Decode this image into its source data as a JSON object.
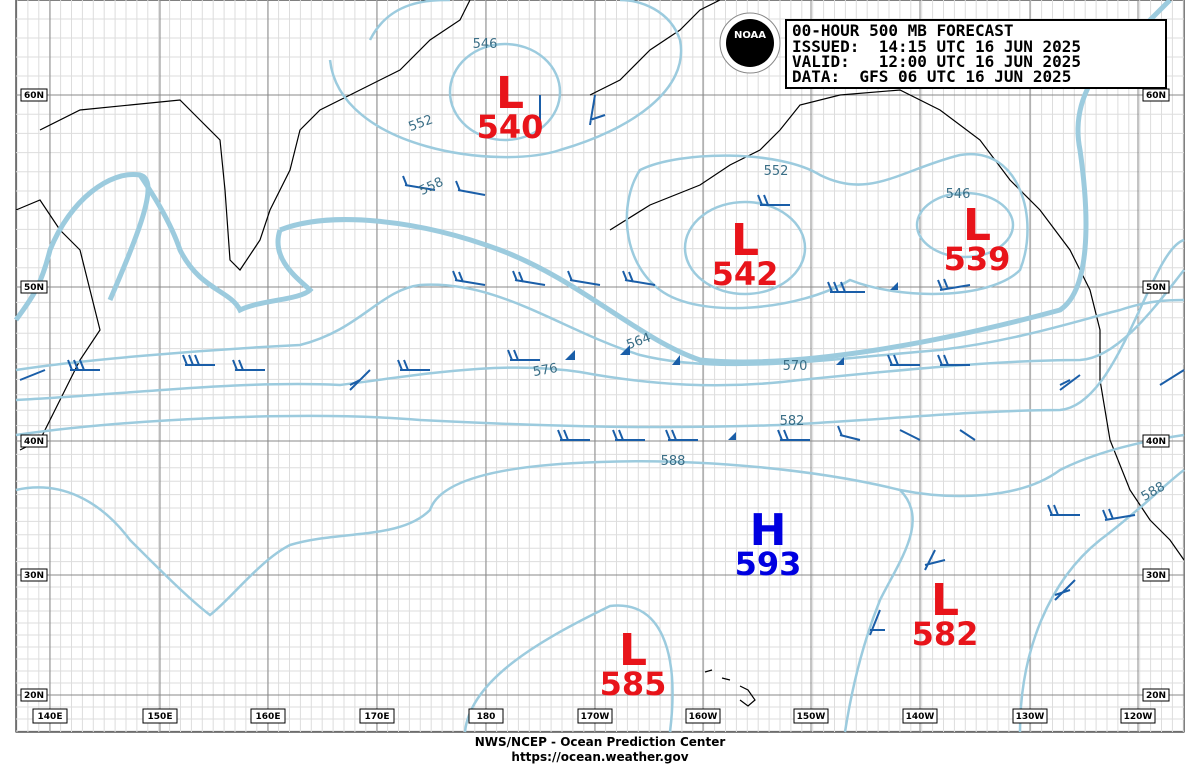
{
  "header": {
    "title": "00-HOUR 500 MB FORECAST",
    "issued": "ISSUED:  14:15 UTC 16 JUN 2025",
    "valid": "VALID:   12:00 UTC 16 JUN 2025",
    "data": "DATA:  GFS 06 UTC 16 JUN 2025"
  },
  "logo": "NOAA",
  "lat_labels": [
    "60N",
    "50N",
    "40N",
    "30N",
    "20N"
  ],
  "lon_labels": [
    "140E",
    "150E",
    "160E",
    "170E",
    "180",
    "170W",
    "160W",
    "150W",
    "140W",
    "130W",
    "120W"
  ],
  "contour_labels": [
    "546",
    "552",
    "558",
    "564",
    "576",
    "570",
    "582",
    "588",
    "552",
    "546",
    "588"
  ],
  "centers": [
    {
      "symbol": "L",
      "value": "540"
    },
    {
      "symbol": "L",
      "value": "542"
    },
    {
      "symbol": "L",
      "value": "539"
    },
    {
      "symbol": "H",
      "value": "593"
    },
    {
      "symbol": "L",
      "value": "582"
    },
    {
      "symbol": "L",
      "value": "585"
    }
  ],
  "footer": {
    "line1": "NWS/NCEP - Ocean Prediction Center",
    "line2": "https://ocean.weather.gov"
  }
}
